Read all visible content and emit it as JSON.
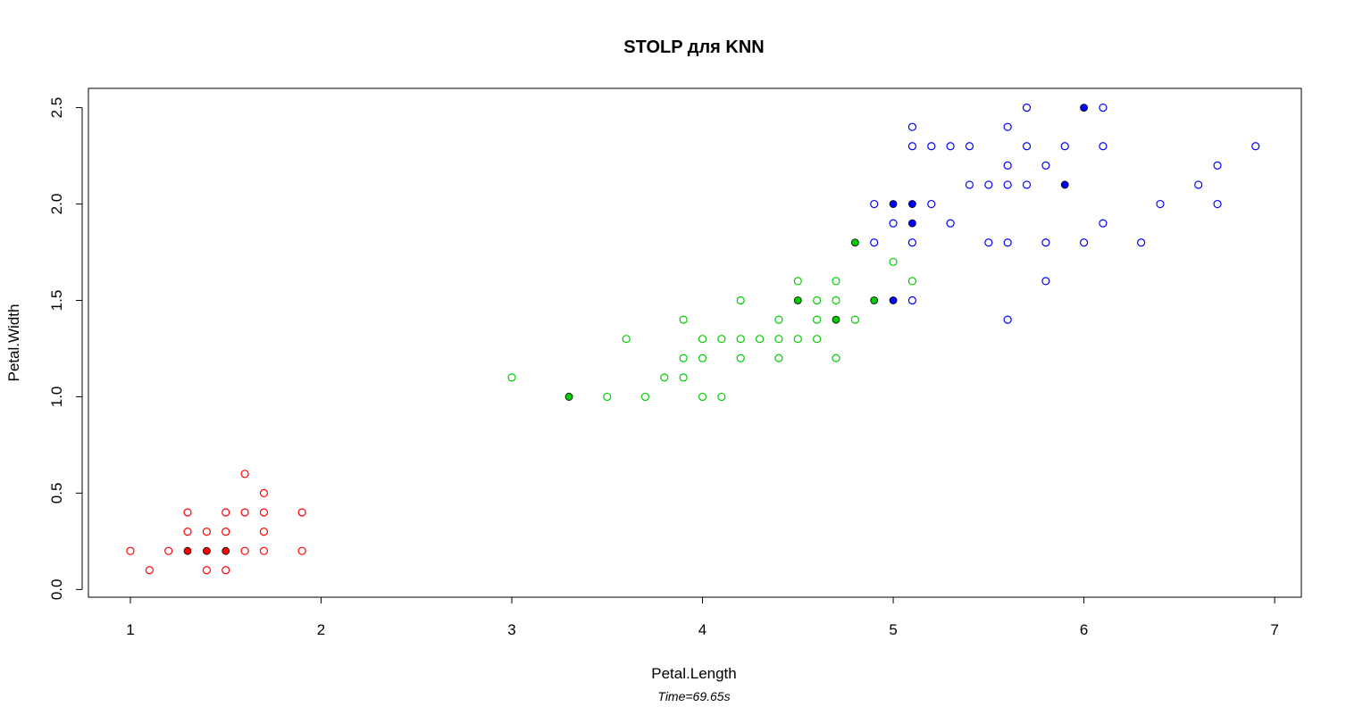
{
  "chart_data": {
    "type": "scatter",
    "title": "STOLP для KNN",
    "subtitle": "Time=69.65s",
    "xlabel": "Petal.Length",
    "ylabel": "Petal.Width",
    "xlim": [
      0.78,
      7.14
    ],
    "ylim": [
      -0.04,
      2.6
    ],
    "x_ticks": [
      1,
      2,
      3,
      4,
      5,
      6,
      7
    ],
    "y_ticks": [
      0.0,
      0.5,
      1.0,
      1.5,
      2.0,
      2.5
    ],
    "x_tick_labels": [
      "1",
      "2",
      "3",
      "4",
      "5",
      "6",
      "7"
    ],
    "y_tick_labels": [
      "0.0",
      "0.5",
      "1.0",
      "1.5",
      "2.0",
      "2.5"
    ],
    "grid": false,
    "series": [
      {
        "color": "#ff0000",
        "points": [
          [
            1.0,
            0.2
          ],
          [
            1.1,
            0.1
          ],
          [
            1.2,
            0.2
          ],
          [
            1.3,
            0.4
          ],
          [
            1.3,
            0.3
          ],
          [
            1.3,
            0.2
          ],
          [
            1.4,
            0.3
          ],
          [
            1.4,
            0.2
          ],
          [
            1.4,
            0.1
          ],
          [
            1.5,
            0.4
          ],
          [
            1.5,
            0.3
          ],
          [
            1.5,
            0.2
          ],
          [
            1.5,
            0.1
          ],
          [
            1.6,
            0.6
          ],
          [
            1.6,
            0.4
          ],
          [
            1.6,
            0.2
          ],
          [
            1.7,
            0.5
          ],
          [
            1.7,
            0.4
          ],
          [
            1.7,
            0.3
          ],
          [
            1.7,
            0.2
          ],
          [
            1.9,
            0.4
          ],
          [
            1.9,
            0.2
          ]
        ],
        "highlighted": [
          [
            1.3,
            0.2
          ],
          [
            1.4,
            0.2
          ],
          [
            1.5,
            0.2
          ]
        ]
      },
      {
        "color": "#00cc00",
        "points": [
          [
            3.0,
            1.1
          ],
          [
            3.3,
            1.0
          ],
          [
            3.5,
            1.0
          ],
          [
            3.6,
            1.3
          ],
          [
            3.7,
            1.0
          ],
          [
            3.8,
            1.1
          ],
          [
            3.9,
            1.4
          ],
          [
            3.9,
            1.2
          ],
          [
            3.9,
            1.1
          ],
          [
            4.0,
            1.3
          ],
          [
            4.0,
            1.2
          ],
          [
            4.0,
            1.0
          ],
          [
            4.1,
            1.3
          ],
          [
            4.1,
            1.0
          ],
          [
            4.2,
            1.5
          ],
          [
            4.2,
            1.3
          ],
          [
            4.2,
            1.2
          ],
          [
            4.3,
            1.3
          ],
          [
            4.4,
            1.4
          ],
          [
            4.4,
            1.3
          ],
          [
            4.4,
            1.2
          ],
          [
            4.5,
            1.6
          ],
          [
            4.5,
            1.5
          ],
          [
            4.5,
            1.3
          ],
          [
            4.6,
            1.5
          ],
          [
            4.6,
            1.4
          ],
          [
            4.6,
            1.3
          ],
          [
            4.7,
            1.6
          ],
          [
            4.7,
            1.5
          ],
          [
            4.7,
            1.4
          ],
          [
            4.7,
            1.2
          ],
          [
            4.8,
            1.8
          ],
          [
            4.8,
            1.4
          ],
          [
            4.9,
            1.5
          ],
          [
            5.0,
            1.7
          ],
          [
            5.1,
            1.6
          ]
        ],
        "highlighted": [
          [
            3.3,
            1.0
          ],
          [
            4.5,
            1.5
          ],
          [
            4.7,
            1.4
          ],
          [
            4.8,
            1.8
          ],
          [
            4.9,
            1.5
          ]
        ]
      },
      {
        "color": "#0000ff",
        "points": [
          [
            4.9,
            2.0
          ],
          [
            4.9,
            1.8
          ],
          [
            5.0,
            2.0
          ],
          [
            5.0,
            1.9
          ],
          [
            5.0,
            1.5
          ],
          [
            5.1,
            2.4
          ],
          [
            5.1,
            2.3
          ],
          [
            5.1,
            2.0
          ],
          [
            5.1,
            1.9
          ],
          [
            5.1,
            1.8
          ],
          [
            5.1,
            1.5
          ],
          [
            5.2,
            2.3
          ],
          [
            5.2,
            2.0
          ],
          [
            5.3,
            2.3
          ],
          [
            5.3,
            1.9
          ],
          [
            5.4,
            2.3
          ],
          [
            5.4,
            2.1
          ],
          [
            5.5,
            2.1
          ],
          [
            5.5,
            1.8
          ],
          [
            5.6,
            2.4
          ],
          [
            5.6,
            2.2
          ],
          [
            5.6,
            2.1
          ],
          [
            5.6,
            1.8
          ],
          [
            5.6,
            1.4
          ],
          [
            5.7,
            2.5
          ],
          [
            5.7,
            2.3
          ],
          [
            5.7,
            2.1
          ],
          [
            5.8,
            2.2
          ],
          [
            5.8,
            1.8
          ],
          [
            5.8,
            1.6
          ],
          [
            5.9,
            2.3
          ],
          [
            5.9,
            2.1
          ],
          [
            6.0,
            2.5
          ],
          [
            6.0,
            1.8
          ],
          [
            6.1,
            2.5
          ],
          [
            6.1,
            2.3
          ],
          [
            6.1,
            1.9
          ],
          [
            6.3,
            1.8
          ],
          [
            6.4,
            2.0
          ],
          [
            6.6,
            2.1
          ],
          [
            6.7,
            2.2
          ],
          [
            6.7,
            2.0
          ],
          [
            6.9,
            2.3
          ]
        ],
        "highlighted": [
          [
            5.0,
            2.0
          ],
          [
            5.1,
            2.0
          ],
          [
            5.1,
            1.9
          ],
          [
            5.0,
            1.5
          ],
          [
            5.9,
            2.1
          ],
          [
            6.0,
            2.5
          ]
        ]
      }
    ]
  }
}
